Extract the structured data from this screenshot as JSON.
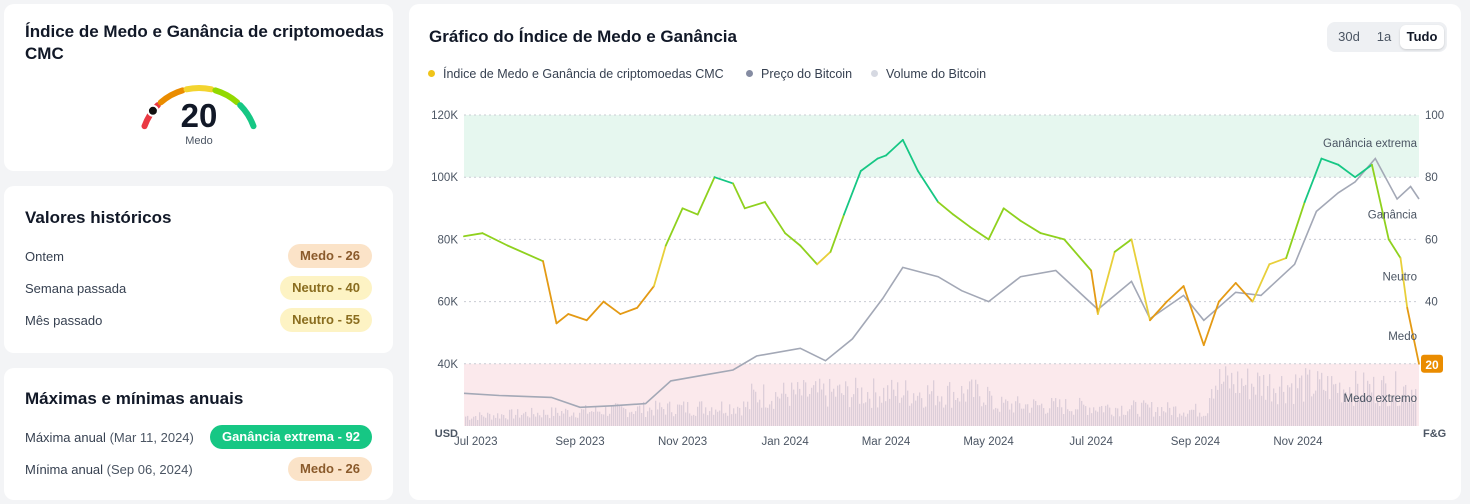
{
  "gauge": {
    "title": "Índice de Medo e Ganância de criptomoedas CMC",
    "value": "20",
    "label": "Medo",
    "arc_colors": [
      "#ea3943",
      "#ea8c00",
      "#f3d42f",
      "#93d900",
      "#16c784"
    ]
  },
  "history": {
    "title": "Valores históricos",
    "rows": [
      {
        "label": "Ontem",
        "value": "Medo - 26",
        "kind": "fear"
      },
      {
        "label": "Semana passada",
        "value": "Neutro - 40",
        "kind": "neutral"
      },
      {
        "label": "Mês passado",
        "value": "Neutro - 55",
        "kind": "neutral"
      }
    ]
  },
  "yearly": {
    "title": "Máximas e mínimas anuais",
    "rows": [
      {
        "label": "Máxima anual",
        "date": "(Mar 11, 2024)",
        "value": "Ganância extrema - 92",
        "kind": "greed-ext"
      },
      {
        "label": "Mínima anual",
        "date": "(Sep 06, 2024)",
        "value": "Medo - 26",
        "kind": "fear"
      }
    ]
  },
  "chart": {
    "title": "Gráfico do Índice de Medo e Ganância",
    "ranges": [
      "30d",
      "1a",
      "Tudo"
    ],
    "active_range": "Tudo",
    "legend": [
      {
        "label": "Índice de Medo e Ganância de criptomoedas CMC",
        "color": "#f0c419"
      },
      {
        "label": "Preço do Bitcoin",
        "color": "#858ca2"
      },
      {
        "label": "Volume do Bitcoin",
        "color": "#d6d9e2"
      }
    ]
  },
  "chart_data": {
    "type": "line",
    "title": "Gráfico do Índice de Medo e Ganância",
    "x_ticks": [
      "Jul 2023",
      "Sep 2023",
      "Nov 2023",
      "Jan 2024",
      "Mar 2024",
      "May 2024",
      "Jul 2024",
      "Sep 2024",
      "Nov 2024"
    ],
    "x_range": [
      "2023-06-24",
      "2025-01-12"
    ],
    "y_left": {
      "label": "USD",
      "ticks": [
        "40K",
        "60K",
        "80K",
        "100K",
        "120K"
      ],
      "range": [
        20000,
        120000
      ]
    },
    "y_right": {
      "label": "F&G",
      "ticks": [
        "20",
        "40",
        "60",
        "80",
        "100"
      ],
      "range": [
        0,
        100
      ]
    },
    "zones": [
      {
        "label": "Ganância extrema",
        "from": 80,
        "to": 100,
        "color": "#e6f7ef"
      },
      {
        "label": "Ganância",
        "value": 70
      },
      {
        "label": "Neutro",
        "value": 50
      },
      {
        "label": "Medo",
        "value": 30
      },
      {
        "label": "Medo extremo",
        "from": 0,
        "to": 20,
        "color": "#fbe9ec"
      }
    ],
    "current_badge": "20",
    "fear_greed_series": {
      "name": "Índice de Medo e Ganância de criptomoedas CMC",
      "x": [
        "2023-06-24",
        "2023-07-05",
        "2023-07-20",
        "2023-08-10",
        "2023-08-18",
        "2023-08-25",
        "2023-09-05",
        "2023-09-15",
        "2023-09-25",
        "2023-10-05",
        "2023-10-15",
        "2023-10-22",
        "2023-11-01",
        "2023-11-10",
        "2023-11-20",
        "2023-12-01",
        "2023-12-08",
        "2023-12-20",
        "2024-01-01",
        "2024-01-10",
        "2024-01-20",
        "2024-01-28",
        "2024-02-05",
        "2024-02-15",
        "2024-02-25",
        "2024-03-01",
        "2024-03-11",
        "2024-03-20",
        "2024-04-01",
        "2024-04-10",
        "2024-04-20",
        "2024-05-01",
        "2024-05-10",
        "2024-05-20",
        "2024-06-01",
        "2024-06-15",
        "2024-07-01",
        "2024-07-05",
        "2024-07-15",
        "2024-07-25",
        "2024-08-05",
        "2024-08-15",
        "2024-08-25",
        "2024-09-06",
        "2024-09-15",
        "2024-09-25",
        "2024-10-05",
        "2024-10-15",
        "2024-10-25",
        "2024-11-05",
        "2024-11-15",
        "2024-11-25",
        "2024-12-05",
        "2024-12-15",
        "2024-12-25",
        "2025-01-01",
        "2025-01-05",
        "2025-01-12"
      ],
      "values": [
        61,
        62,
        58,
        53,
        33,
        36,
        34,
        40,
        36,
        38,
        45,
        58,
        70,
        68,
        80,
        78,
        70,
        72,
        62,
        58,
        52,
        56,
        68,
        82,
        86,
        87,
        92,
        82,
        72,
        68,
        64,
        60,
        70,
        66,
        62,
        60,
        50,
        36,
        56,
        60,
        34,
        40,
        45,
        26,
        40,
        46,
        40,
        52,
        54,
        72,
        86,
        84,
        80,
        84,
        60,
        54,
        38,
        20
      ]
    },
    "price_series": {
      "name": "Preço do Bitcoin",
      "x": [
        "2023-06-24",
        "2023-07-15",
        "2023-08-15",
        "2023-09-01",
        "2023-09-20",
        "2023-10-10",
        "2023-10-25",
        "2023-11-15",
        "2023-12-01",
        "2023-12-15",
        "2024-01-10",
        "2024-01-25",
        "2024-02-10",
        "2024-02-28",
        "2024-03-11",
        "2024-04-01",
        "2024-04-15",
        "2024-05-01",
        "2024-05-20",
        "2024-06-10",
        "2024-07-05",
        "2024-07-25",
        "2024-08-05",
        "2024-08-25",
        "2024-09-06",
        "2024-09-25",
        "2024-10-10",
        "2024-10-30",
        "2024-11-12",
        "2024-11-25",
        "2024-12-05",
        "2024-12-17",
        "2024-12-30",
        "2025-01-07",
        "2025-01-12"
      ],
      "values": [
        30500,
        29800,
        29200,
        26000,
        26500,
        27200,
        34500,
        36500,
        38000,
        42500,
        45000,
        41000,
        48000,
        61000,
        71000,
        68000,
        63500,
        60000,
        68000,
        70000,
        57500,
        66500,
        54500,
        62000,
        54000,
        63000,
        62000,
        72000,
        89000,
        95000,
        98500,
        106000,
        93000,
        97000,
        93000
      ]
    },
    "volume_series": {
      "name": "Volume do Bitcoin",
      "note_levels": "relative heights",
      "x_range": [
        "2023-06-24",
        "2025-01-12"
      ]
    }
  }
}
